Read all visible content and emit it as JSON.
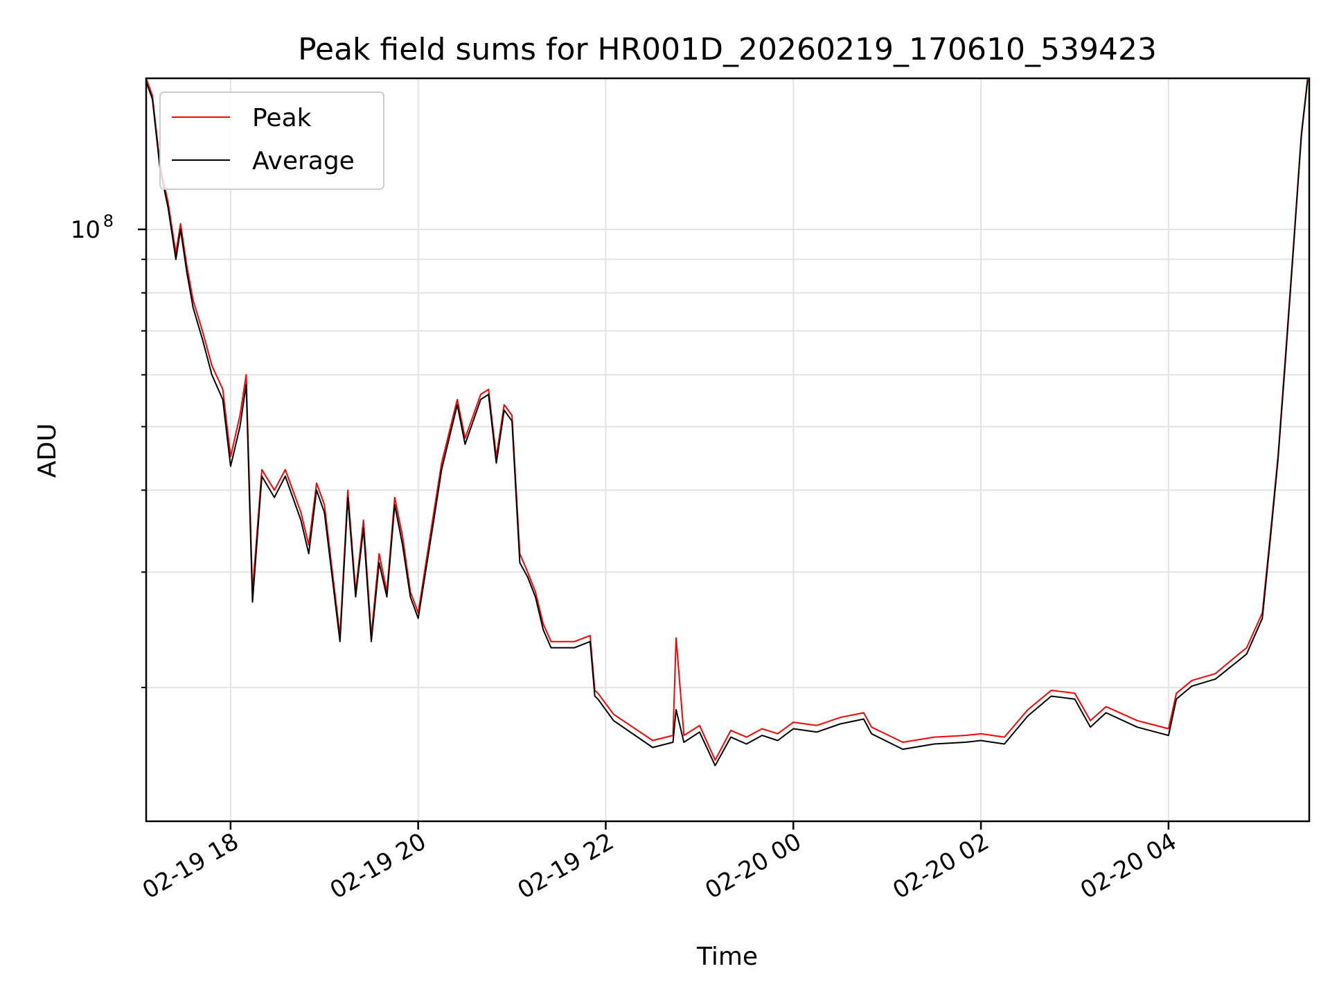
{
  "chart_data": {
    "type": "line",
    "title": "Peak field sums for HR001D_20260219_170610_539423",
    "xlabel": "Time",
    "ylabel": "ADU",
    "yscale": "log",
    "grid": true,
    "legend_position": "top-left",
    "x_tick_labels": [
      "02-19 18",
      "02-19 20",
      "02-19 22",
      "02-20 00",
      "02-20 02",
      "02-20 04"
    ],
    "x_ticks": [
      "2026-02-19 18:00",
      "2026-02-19 20:00",
      "2026-02-19 22:00",
      "2026-02-20 00:00",
      "2026-02-20 02:00",
      "2026-02-20 04:00"
    ],
    "xlim": [
      "2026-02-19 17:06",
      "2026-02-20 05:30"
    ],
    "ylim": [
      12500000,
      170000000
    ],
    "y_major_tick": {
      "value": 100000000,
      "label_base": "10",
      "label_exp": "8"
    },
    "y_minor_ticks": [
      20000000,
      30000000,
      40000000,
      50000000,
      60000000,
      70000000,
      80000000,
      90000000,
      200000000
    ],
    "series": [
      {
        "name": "Peak",
        "color": "#ff0000",
        "x": [
          "2026-02-19 17:06",
          "2026-02-19 17:10",
          "2026-02-19 17:15",
          "2026-02-19 17:20",
          "2026-02-19 17:25",
          "2026-02-19 17:28",
          "2026-02-19 17:32",
          "2026-02-19 17:36",
          "2026-02-19 17:42",
          "2026-02-19 17:48",
          "2026-02-19 17:55",
          "2026-02-19 18:00",
          "2026-02-19 18:06",
          "2026-02-19 18:10",
          "2026-02-19 18:14",
          "2026-02-19 18:20",
          "2026-02-19 18:28",
          "2026-02-19 18:35",
          "2026-02-19 18:45",
          "2026-02-19 18:50",
          "2026-02-19 18:55",
          "2026-02-19 19:00",
          "2026-02-19 19:10",
          "2026-02-19 19:15",
          "2026-02-19 19:20",
          "2026-02-19 19:25",
          "2026-02-19 19:30",
          "2026-02-19 19:35",
          "2026-02-19 19:40",
          "2026-02-19 19:45",
          "2026-02-19 19:50",
          "2026-02-19 19:55",
          "2026-02-19 20:00",
          "2026-02-19 20:10",
          "2026-02-19 20:15",
          "2026-02-19 20:25",
          "2026-02-19 20:30",
          "2026-02-19 20:40",
          "2026-02-19 20:45",
          "2026-02-19 20:50",
          "2026-02-19 20:55",
          "2026-02-19 21:00",
          "2026-02-19 21:05",
          "2026-02-19 21:10",
          "2026-02-19 21:15",
          "2026-02-19 21:20",
          "2026-02-19 21:25",
          "2026-02-19 21:30",
          "2026-02-19 21:40",
          "2026-02-19 21:50",
          "2026-02-19 21:53",
          "2026-02-19 21:55",
          "2026-02-19 22:05",
          "2026-02-19 22:30",
          "2026-02-19 22:43",
          "2026-02-19 22:45",
          "2026-02-19 22:50",
          "2026-02-19 23:00",
          "2026-02-19 23:10",
          "2026-02-19 23:20",
          "2026-02-19 23:30",
          "2026-02-19 23:40",
          "2026-02-19 23:50",
          "2026-02-20 00:00",
          "2026-02-20 00:15",
          "2026-02-20 00:30",
          "2026-02-20 00:45",
          "2026-02-20 00:50",
          "2026-02-20 01:10",
          "2026-02-20 01:30",
          "2026-02-20 01:50",
          "2026-02-20 02:00",
          "2026-02-20 02:15",
          "2026-02-20 02:30",
          "2026-02-20 02:45",
          "2026-02-20 03:00",
          "2026-02-20 03:10",
          "2026-02-20 03:20",
          "2026-02-20 03:40",
          "2026-02-20 04:00",
          "2026-02-20 04:05",
          "2026-02-20 04:15",
          "2026-02-20 04:30",
          "2026-02-20 04:45",
          "2026-02-20 04:50",
          "2026-02-20 05:00",
          "2026-02-20 05:05",
          "2026-02-20 05:10",
          "2026-02-20 05:15",
          "2026-02-20 05:20",
          "2026-02-20 05:25",
          "2026-02-20 05:29"
        ],
        "values": [
          170000000,
          160000000,
          125000000,
          110000000,
          92000000,
          102000000,
          88000000,
          78000000,
          70000000,
          62000000,
          57000000,
          45000000,
          52000000,
          60000000,
          28000000,
          43000000,
          40000000,
          43000000,
          37000000,
          33000000,
          41000000,
          38000000,
          24000000,
          40000000,
          28000000,
          36000000,
          24000000,
          32000000,
          28000000,
          39000000,
          34000000,
          28000000,
          26000000,
          37000000,
          44000000,
          55000000,
          48000000,
          56000000,
          57000000,
          45000000,
          54000000,
          52000000,
          32000000,
          30000000,
          28000000,
          25000000,
          23500000,
          23500000,
          23500000,
          24000000,
          19800000,
          19600000,
          18200000,
          16600000,
          16900000,
          23800000,
          16900000,
          17500000,
          15500000,
          17200000,
          16800000,
          17300000,
          17000000,
          17700000,
          17500000,
          18000000,
          18300000,
          17400000,
          16500000,
          16800000,
          16900000,
          17000000,
          16800000,
          18500000,
          19800000,
          19600000,
          17800000,
          18700000,
          17800000,
          17300000,
          19600000,
          20500000,
          21000000,
          22500000,
          23000000,
          26000000,
          34000000,
          45000000,
          65000000,
          95000000,
          140000000,
          170000000
        ]
      },
      {
        "name": "Average",
        "color": "#000000",
        "x": [
          "2026-02-19 17:06",
          "2026-02-19 17:10",
          "2026-02-19 17:15",
          "2026-02-19 17:20",
          "2026-02-19 17:25",
          "2026-02-19 17:28",
          "2026-02-19 17:32",
          "2026-02-19 17:36",
          "2026-02-19 17:42",
          "2026-02-19 17:48",
          "2026-02-19 17:55",
          "2026-02-19 18:00",
          "2026-02-19 18:06",
          "2026-02-19 18:10",
          "2026-02-19 18:14",
          "2026-02-19 18:20",
          "2026-02-19 18:28",
          "2026-02-19 18:35",
          "2026-02-19 18:45",
          "2026-02-19 18:50",
          "2026-02-19 18:55",
          "2026-02-19 19:00",
          "2026-02-19 19:10",
          "2026-02-19 19:15",
          "2026-02-19 19:20",
          "2026-02-19 19:25",
          "2026-02-19 19:30",
          "2026-02-19 19:35",
          "2026-02-19 19:40",
          "2026-02-19 19:45",
          "2026-02-19 19:50",
          "2026-02-19 19:55",
          "2026-02-19 20:00",
          "2026-02-19 20:10",
          "2026-02-19 20:15",
          "2026-02-19 20:25",
          "2026-02-19 20:30",
          "2026-02-19 20:40",
          "2026-02-19 20:45",
          "2026-02-19 20:50",
          "2026-02-19 20:55",
          "2026-02-19 21:00",
          "2026-02-19 21:05",
          "2026-02-19 21:10",
          "2026-02-19 21:15",
          "2026-02-19 21:20",
          "2026-02-19 21:25",
          "2026-02-19 21:30",
          "2026-02-19 21:40",
          "2026-02-19 21:50",
          "2026-02-19 21:53",
          "2026-02-19 21:55",
          "2026-02-19 22:05",
          "2026-02-19 22:30",
          "2026-02-19 22:43",
          "2026-02-19 22:45",
          "2026-02-19 22:50",
          "2026-02-19 23:00",
          "2026-02-19 23:10",
          "2026-02-19 23:20",
          "2026-02-19 23:30",
          "2026-02-19 23:40",
          "2026-02-19 23:50",
          "2026-02-20 00:00",
          "2026-02-20 00:15",
          "2026-02-20 00:30",
          "2026-02-20 00:45",
          "2026-02-20 00:50",
          "2026-02-20 01:10",
          "2026-02-20 01:30",
          "2026-02-20 01:50",
          "2026-02-20 02:00",
          "2026-02-20 02:15",
          "2026-02-20 02:30",
          "2026-02-20 02:45",
          "2026-02-20 03:00",
          "2026-02-20 03:10",
          "2026-02-20 03:20",
          "2026-02-20 03:40",
          "2026-02-20 04:00",
          "2026-02-20 04:05",
          "2026-02-20 04:15",
          "2026-02-20 04:30",
          "2026-02-20 04:45",
          "2026-02-20 04:50",
          "2026-02-20 05:00",
          "2026-02-20 05:05",
          "2026-02-20 05:10",
          "2026-02-20 05:15",
          "2026-02-20 05:20",
          "2026-02-20 05:25",
          "2026-02-20 05:29"
        ],
        "values": [
          168000000,
          158000000,
          123000000,
          108000000,
          90000000,
          100000000,
          86000000,
          76000000,
          68000000,
          60000000,
          55000000,
          43500000,
          50000000,
          58000000,
          27000000,
          42000000,
          39000000,
          42000000,
          36000000,
          32000000,
          40000000,
          37000000,
          23500000,
          39000000,
          27500000,
          35000000,
          23500000,
          31000000,
          27500000,
          38000000,
          33000000,
          27500000,
          25500000,
          36000000,
          43000000,
          54000000,
          47000000,
          55000000,
          56000000,
          44000000,
          53000000,
          51000000,
          31000000,
          29500000,
          27500000,
          24500000,
          23000000,
          23000000,
          23000000,
          23500000,
          19400000,
          19200000,
          17800000,
          16200000,
          16500000,
          18500000,
          16500000,
          17100000,
          15200000,
          16800000,
          16400000,
          16900000,
          16600000,
          17300000,
          17100000,
          17600000,
          17900000,
          17000000,
          16100000,
          16400000,
          16500000,
          16600000,
          16400000,
          18100000,
          19400000,
          19200000,
          17400000,
          18300000,
          17400000,
          16900000,
          19200000,
          20100000,
          20600000,
          22000000,
          22500000,
          25500000,
          33500000,
          44500000,
          64000000,
          94000000,
          139000000,
          169000000
        ]
      }
    ]
  }
}
